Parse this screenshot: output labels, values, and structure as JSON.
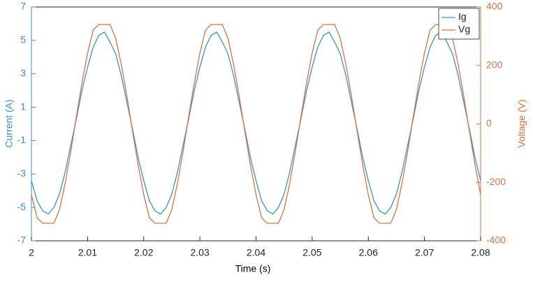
{
  "chart_data": {
    "type": "line",
    "xlabel": "Time (s)",
    "ylabel": "Current (A)",
    "y2label": "Voltage (V)",
    "x": [
      2,
      2.001,
      2.002,
      2.003,
      2.004,
      2.005,
      2.006,
      2.007,
      2.008,
      2.009,
      2.01,
      2.011,
      2.012,
      2.013,
      2.014,
      2.015,
      2.016,
      2.017,
      2.018,
      2.019,
      2.02,
      2.021,
      2.022,
      2.023,
      2.024,
      2.025,
      2.026,
      2.027,
      2.028,
      2.029,
      2.03,
      2.031,
      2.032,
      2.033,
      2.034,
      2.035,
      2.036,
      2.037,
      2.038,
      2.039,
      2.04,
      2.041,
      2.042,
      2.043,
      2.044,
      2.045,
      2.046,
      2.047,
      2.048,
      2.049,
      2.05,
      2.051,
      2.052,
      2.053,
      2.054,
      2.055,
      2.056,
      2.057,
      2.058,
      2.059,
      2.06,
      2.061,
      2.062,
      2.063,
      2.064,
      2.065,
      2.066,
      2.067,
      2.068,
      2.069,
      2.07,
      2.071,
      2.072,
      2.073,
      2.074,
      2.075,
      2.076,
      2.077,
      2.078,
      2.079,
      2.08
    ],
    "series": [
      {
        "name": "Ig",
        "color": "#3a8fd0",
        "axis": "y",
        "values": [
          -3.4,
          -4.6,
          -5.2,
          -5.4,
          -5.0,
          -4.2,
          -2.9,
          -1.3,
          0.3,
          2.0,
          3.4,
          4.6,
          5.3,
          5.5,
          4.9,
          4.2,
          2.9,
          1.3,
          -0.3,
          -2.0,
          -3.4,
          -4.6,
          -5.2,
          -5.4,
          -5.0,
          -4.2,
          -2.9,
          -1.3,
          0.3,
          2.0,
          3.4,
          4.6,
          5.3,
          5.5,
          4.9,
          4.2,
          2.9,
          1.3,
          -0.3,
          -2.0,
          -3.4,
          -4.6,
          -5.2,
          -5.4,
          -5.0,
          -4.2,
          -2.9,
          -1.3,
          0.3,
          2.0,
          3.4,
          4.6,
          5.3,
          5.5,
          4.9,
          4.2,
          2.9,
          1.3,
          -0.3,
          -2.0,
          -3.4,
          -4.6,
          -5.2,
          -5.4,
          -5.0,
          -4.2,
          -2.9,
          -1.3,
          0.3,
          2.0,
          3.4,
          4.6,
          5.3,
          5.5,
          4.9,
          4.2,
          2.9,
          1.3,
          -0.3,
          -2.0,
          -3.4
        ]
      },
      {
        "name": "Vg",
        "color": "#e0703c",
        "axis": "y2",
        "values": [
          -242,
          -321,
          -340,
          -340,
          -340,
          -293,
          -204,
          -95,
          24,
          140,
          242,
          321,
          340,
          340,
          340,
          293,
          204,
          95,
          -24,
          -140,
          -242,
          -321,
          -340,
          -340,
          -340,
          -293,
          -204,
          -95,
          24,
          140,
          242,
          321,
          340,
          340,
          340,
          293,
          204,
          95,
          -24,
          -140,
          -242,
          -321,
          -340,
          -340,
          -340,
          -293,
          -204,
          -95,
          24,
          140,
          242,
          321,
          340,
          340,
          340,
          293,
          204,
          95,
          -24,
          -140,
          -242,
          -321,
          -340,
          -340,
          -340,
          -293,
          -204,
          -95,
          24,
          140,
          242,
          321,
          340,
          340,
          340,
          293,
          204,
          95,
          -24,
          -140,
          -242
        ]
      }
    ],
    "xlim": [
      2,
      2.08
    ],
    "xticks": [
      2,
      2.01,
      2.02,
      2.03,
      2.04,
      2.05,
      2.06,
      2.07,
      2.08
    ],
    "ylim": [
      -7,
      7
    ],
    "yticks": [
      -7,
      -5,
      -3,
      -1,
      1,
      3,
      5,
      7
    ],
    "y2lim": [
      -400,
      400
    ],
    "y2ticks": [
      -400,
      -200,
      0,
      200,
      400
    ],
    "grid": false,
    "legend": "northeast"
  }
}
